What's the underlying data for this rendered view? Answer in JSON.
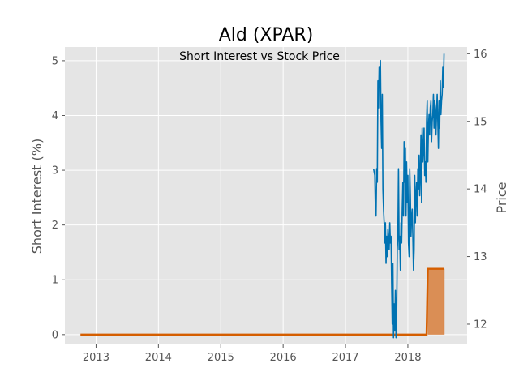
{
  "chart_data": {
    "type": "line",
    "title": "Ald (XPAR)",
    "subtitle": "Short Interest vs Stock Price",
    "ylabel": "Short Interest (%)",
    "y2label": "Price",
    "xlim": [
      2012.5,
      2018.95
    ],
    "ylim": [
      -0.18,
      5.25
    ],
    "y2lim": [
      11.7,
      16.1
    ],
    "x_ticks": [
      2013,
      2014,
      2015,
      2016,
      2017,
      2018
    ],
    "y_ticks": [
      0,
      1,
      2,
      3,
      4,
      5
    ],
    "y2_ticks": [
      12,
      13,
      14,
      15,
      16
    ],
    "grid": true,
    "colors": {
      "background": "#e5e5e5",
      "grid": "#ffffff",
      "short_interest": "#d55e00",
      "short_interest_fill": "#d9894d",
      "price": "#0072b2"
    },
    "series": [
      {
        "axis": "left",
        "style": "step-area",
        "x": [
          2012.75,
          2018.3,
          2018.32,
          2018.58
        ],
        "y": [
          0.0,
          0.0,
          1.2,
          1.2
        ]
      },
      {
        "axis": "right",
        "style": "line",
        "x": [
          2017.45,
          2017.47,
          2017.48,
          2017.49,
          2017.5,
          2017.51,
          2017.52,
          2017.53,
          2017.54,
          2017.55,
          2017.56,
          2017.57,
          2017.58,
          2017.59,
          2017.6,
          2017.61,
          2017.62,
          2017.63,
          2017.64,
          2017.65,
          2017.66,
          2017.67,
          2017.68,
          2017.69,
          2017.7,
          2017.71,
          2017.72,
          2017.73,
          2017.74,
          2017.75,
          2017.76,
          2017.77,
          2017.78,
          2017.79,
          2017.8,
          2017.81,
          2017.82,
          2017.83,
          2017.84,
          2017.85,
          2017.86,
          2017.87,
          2017.88,
          2017.89,
          2017.9,
          2017.91,
          2017.92,
          2017.93,
          2017.94,
          2017.95,
          2017.96,
          2017.97,
          2017.98,
          2017.99,
          2018.0,
          2018.01,
          2018.02,
          2018.03,
          2018.04,
          2018.05,
          2018.06,
          2018.07,
          2018.08,
          2018.09,
          2018.1,
          2018.11,
          2018.12,
          2018.13,
          2018.14,
          2018.15,
          2018.16,
          2018.17,
          2018.18,
          2018.19,
          2018.2,
          2018.21,
          2018.22,
          2018.23,
          2018.24,
          2018.25,
          2018.26,
          2018.27,
          2018.28,
          2018.29,
          2018.3,
          2018.31,
          2018.32,
          2018.33,
          2018.34,
          2018.35,
          2018.36,
          2018.37,
          2018.38,
          2018.39,
          2018.4,
          2018.41,
          2018.42,
          2018.43,
          2018.44,
          2018.45,
          2018.46,
          2018.47,
          2018.48,
          2018.49,
          2018.5,
          2018.51,
          2018.52,
          2018.53,
          2018.54,
          2018.55,
          2018.56,
          2018.57,
          2018.58
        ],
        "y": [
          14.3,
          14.2,
          13.7,
          13.6,
          14.3,
          14.1,
          15.6,
          15.2,
          15.8,
          15.5,
          15.9,
          15.0,
          14.6,
          15.4,
          14.0,
          13.7,
          13.5,
          13.2,
          13.5,
          12.9,
          13.3,
          13.0,
          13.4,
          13.2,
          13.1,
          13.5,
          13.2,
          13.3,
          12.6,
          12.0,
          12.9,
          11.8,
          12.3,
          11.9,
          12.5,
          11.8,
          12.1,
          13.1,
          13.3,
          14.3,
          13.1,
          13.3,
          12.8,
          13.5,
          13.2,
          13.7,
          14.1,
          13.6,
          14.7,
          14.1,
          14.6,
          13.6,
          14.4,
          13.8,
          14.2,
          13.2,
          13.0,
          14.3,
          13.9,
          13.3,
          13.6,
          13.7,
          13.3,
          12.8,
          13.1,
          14.2,
          13.5,
          13.9,
          14.1,
          13.6,
          14.3,
          14.0,
          14.5,
          13.9,
          14.2,
          14.8,
          13.8,
          14.9,
          14.4,
          14.6,
          14.9,
          14.2,
          14.4,
          14.1,
          15.0,
          15.3,
          14.4,
          14.9,
          15.1,
          14.8,
          15.2,
          15.3,
          14.7,
          15.0,
          15.1,
          15.4,
          14.9,
          15.3,
          15.2,
          14.8,
          15.1,
          15.4,
          15.0,
          14.6,
          15.3,
          14.9,
          15.6,
          15.1,
          15.3,
          15.4,
          15.8,
          15.5,
          16.0
        ]
      }
    ]
  }
}
